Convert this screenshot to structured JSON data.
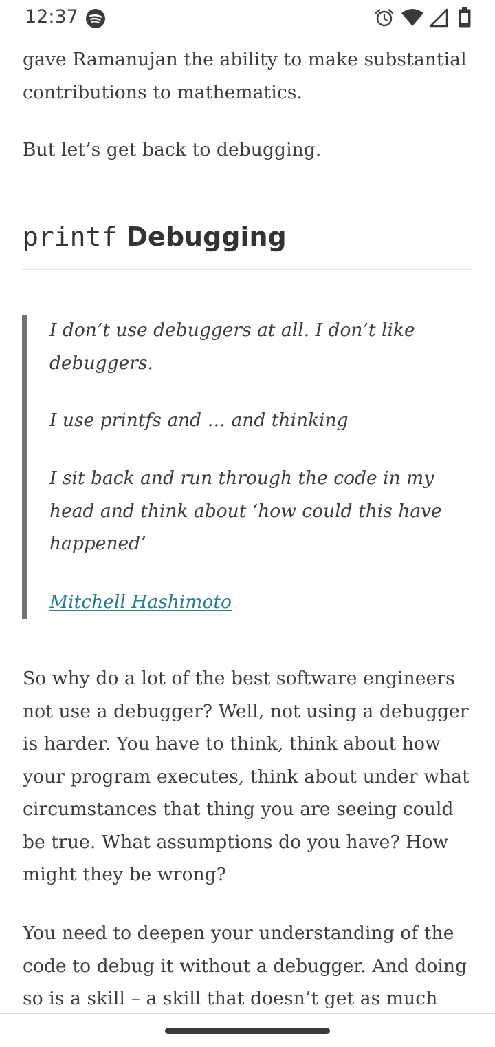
{
  "status_bar": {
    "time": "12:37",
    "app_icon": "spotify-icon",
    "icons": [
      "alarm-icon",
      "wifi-icon",
      "cell-signal-icon",
      "battery-icon"
    ]
  },
  "article": {
    "intro_lines": [
      "gave Ramanujan the ability to make substantial",
      "contributions to mathematics."
    ],
    "back_line": "But let’s get back to debugging.",
    "heading_code": "printf",
    "heading_text": " Debugging",
    "quote": {
      "p1_lines": [
        "I don’t use debuggers at all. I don’t like",
        "debuggers."
      ],
      "p2": "I use printfs and … and thinking",
      "p3_lines": [
        "I sit back and run through the code in my",
        "head and think about ‘how could this have",
        "happened’"
      ],
      "cite": "Mitchell Hashimoto"
    },
    "para1_lines": [
      "So why do a lot of the best software engineers",
      "not use a debugger? Well, not using a debugger",
      "is harder. You have to think, think about how",
      "your program executes, think about under what",
      "circumstances that thing you are seeing could",
      "be true. What assumptions do you have? How",
      "might they be wrong?"
    ],
    "para2_lines": [
      "You need to deepen your understanding of the",
      "code to debug it without a debugger. And doing",
      "so is a skill – a skill that doesn’t get as much"
    ]
  }
}
